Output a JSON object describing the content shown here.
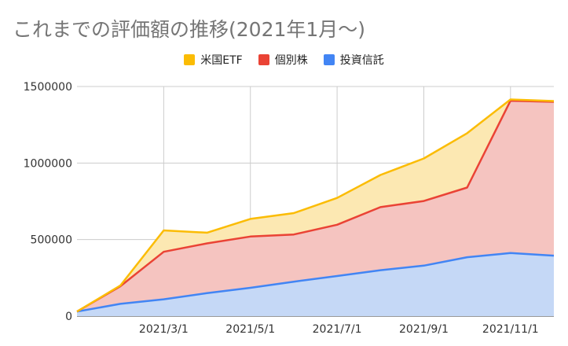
{
  "chart_data": {
    "type": "area",
    "stacked": true,
    "title": "これまでの評価額の推移(2021年1月～)",
    "xlabel": "",
    "ylabel": "",
    "x": [
      "2021/1/1",
      "2021/2/1",
      "2021/3/1",
      "2021/4/1",
      "2021/5/1",
      "2021/6/1",
      "2021/7/1",
      "2021/8/1",
      "2021/9/1",
      "2021/10/1",
      "2021/11/1",
      "2021/12/1"
    ],
    "x_tick_labels": [
      "2021/3/1",
      "2021/5/1",
      "2021/7/1",
      "2021/9/1",
      "2021/11/1"
    ],
    "ylim": [
      0,
      1500000
    ],
    "y_ticks": [
      "0",
      "500000",
      "1000000",
      "1500000"
    ],
    "grid": true,
    "legend_position": "top",
    "series": [
      {
        "name": "投資信託",
        "color": "#4285f4",
        "fill": "#c5d8f6",
        "values": [
          30000,
          80000,
          110000,
          150000,
          185000,
          225000,
          262000,
          300000,
          330000,
          385000,
          412000,
          395000
        ]
      },
      {
        "name": "個別株",
        "color": "#ea4335",
        "fill": "#f5c4c0",
        "values": [
          0,
          115000,
          310000,
          325000,
          335000,
          308000,
          335000,
          412000,
          422000,
          455000,
          995000,
          1005000
        ]
      },
      {
        "name": "米国ETF",
        "color": "#fbbc04",
        "fill": "#fce8b2",
        "values": [
          0,
          5000,
          140000,
          70000,
          115000,
          140000,
          175000,
          210000,
          278000,
          355000,
          8000,
          5000
        ]
      }
    ]
  }
}
